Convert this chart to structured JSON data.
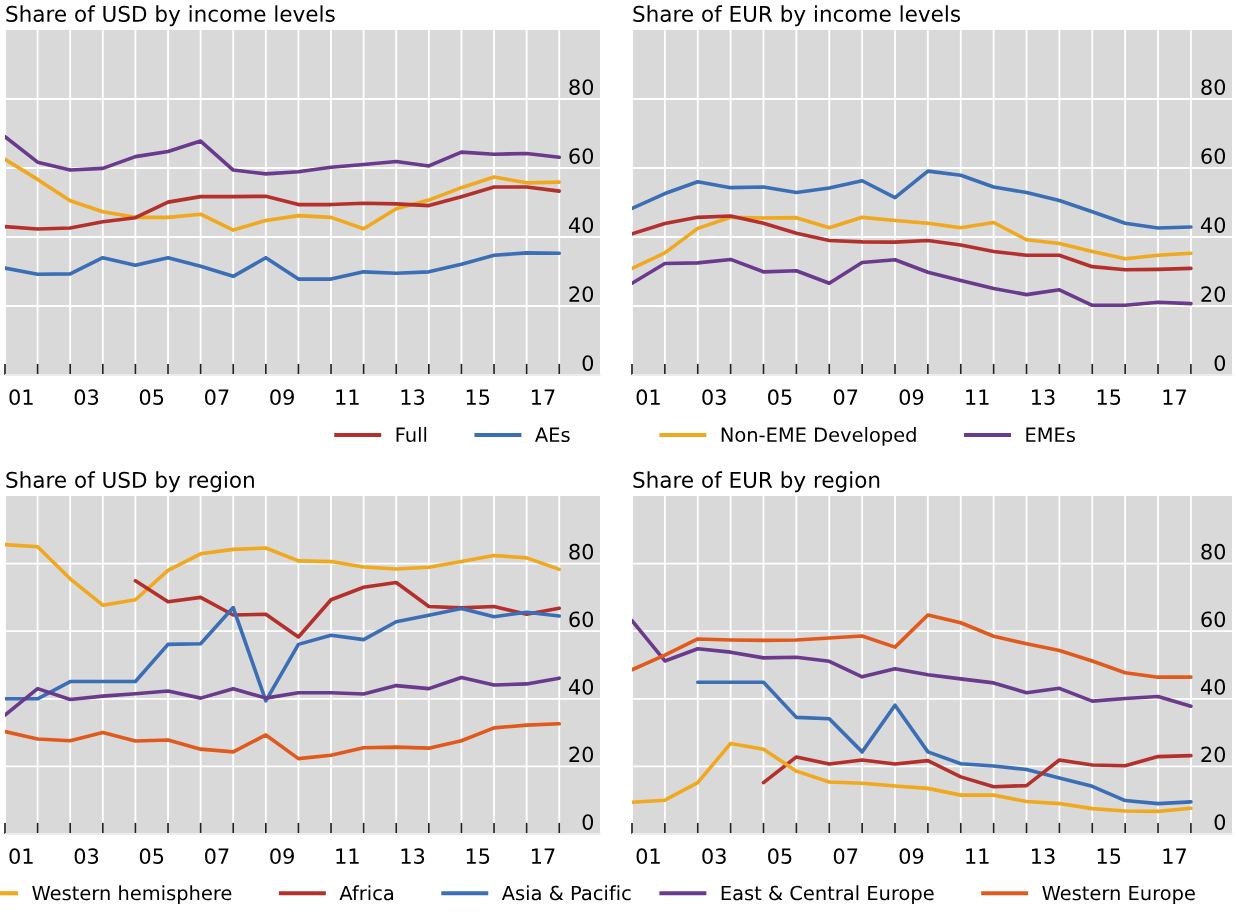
{
  "chart_data": [
    {
      "type": "line",
      "title": "Share of USD by income levels",
      "x": [
        0.5,
        1.5,
        2.5,
        3.5,
        4.5,
        5.5,
        6.5,
        7.5,
        8.5,
        9.5,
        10.5,
        11.5,
        12.5,
        13.5,
        14.5,
        15.5,
        16.5,
        17.5
      ],
      "series": [
        {
          "color": "#6a3a8c",
          "values": [
            69.1,
            61.7,
            59.4,
            59.9,
            63.3,
            64.8,
            67.8,
            59.4,
            58.3,
            58.9,
            60.2,
            61.0,
            61.9,
            60.6,
            64.6,
            64.0,
            64.2,
            63.1
          ]
        },
        {
          "color": "#f0a81e",
          "values": [
            62.5,
            56.7,
            50.5,
            47.3,
            45.7,
            45.7,
            46.6,
            42.0,
            44.8,
            46.2,
            45.7,
            42.4,
            48.2,
            50.7,
            54.3,
            57.4,
            55.7,
            55.9
          ]
        },
        {
          "name": "Full",
          "color": "#b3302d",
          "values": [
            43.0,
            42.3,
            42.6,
            44.4,
            45.6,
            50.1,
            51.7,
            51.7,
            51.8,
            49.4,
            49.4,
            49.8,
            49.6,
            49.1,
            51.7,
            54.5,
            54.5,
            53.3
          ]
        },
        {
          "name": "AEs",
          "color": "#3b6eb5",
          "values": [
            31.0,
            29.2,
            29.3,
            34.0,
            31.8,
            34.0,
            31.5,
            28.6,
            34.0,
            27.8,
            27.8,
            29.9,
            29.5,
            29.9,
            32.1,
            34.7,
            35.4,
            35.3
          ]
        }
      ],
      "xlim": [
        0.5,
        18.75
      ],
      "xticks": [
        {
          "value": 1,
          "label": "01"
        },
        {
          "value": 3,
          "label": "03"
        },
        {
          "value": 5,
          "label": "05"
        },
        {
          "value": 7,
          "label": "07"
        },
        {
          "value": 9,
          "label": "09"
        },
        11,
        13,
        15,
        17,
        {
          "value": 0.5,
          "label": null
        },
        {
          "value": 1.5,
          "label": null
        },
        {
          "value": 2.5,
          "label": null
        },
        {
          "value": 3.5,
          "label": null
        },
        {
          "value": 4.5,
          "label": null
        },
        {
          "value": 5.5,
          "label": null
        },
        {
          "value": 6.5,
          "label": null
        },
        {
          "value": 7.5,
          "label": null
        },
        {
          "value": 8.5,
          "label": null
        },
        {
          "value": 9.5,
          "label": null
        },
        {
          "value": 10.5,
          "label": null
        },
        {
          "value": 11.5,
          "label": null
        },
        {
          "value": 12.5,
          "label": null
        },
        {
          "value": 13.5,
          "label": null
        },
        {
          "value": 14.5,
          "label": null
        },
        {
          "value": 15.5,
          "label": null
        },
        {
          "value": 16.5,
          "label": null
        },
        {
          "value": 17.5,
          "label": null
        }
      ],
      "ylim": [
        0,
        100
      ],
      "yticks": [
        0,
        20,
        40,
        60,
        80
      ],
      "grid": true,
      "legend": "bottom right"
    },
    {
      "type": "line",
      "title": "Share of EUR by income levels",
      "x": [
        0.5,
        1.5,
        2.5,
        3.5,
        4.5,
        5.5,
        6.5,
        7.5,
        8.5,
        9.5,
        10.5,
        11.5,
        12.5,
        13.5,
        14.5,
        15.5,
        16.5,
        17.5
      ],
      "series": [
        {
          "color": "#3b6eb5",
          "values": [
            48.3,
            52.6,
            56.0,
            54.3,
            54.5,
            52.9,
            54.2,
            56.3,
            51.4,
            59.1,
            57.9,
            54.5,
            52.9,
            50.6,
            47.3,
            44.0,
            42.6,
            42.9
          ]
        },
        {
          "name": "Non-EME Developed",
          "color": "#f0a81e",
          "values": [
            30.9,
            35.4,
            42.5,
            45.7,
            45.5,
            45.6,
            42.7,
            45.7,
            44.8,
            44.0,
            42.7,
            44.2,
            39.2,
            38.1,
            35.8,
            33.7,
            34.7,
            35.3
          ]
        },
        {
          "color": "#b3302d",
          "values": [
            40.9,
            43.9,
            45.7,
            46.1,
            44.0,
            41.1,
            39.0,
            38.6,
            38.5,
            39.0,
            37.7,
            35.8,
            34.7,
            34.7,
            31.4,
            30.5,
            30.6,
            30.9
          ]
        },
        {
          "name": "EMEs",
          "color": "#6a3a8c",
          "values": [
            26.6,
            32.3,
            32.5,
            33.5,
            29.9,
            30.2,
            26.6,
            32.6,
            33.4,
            29.8,
            27.4,
            25.1,
            23.3,
            24.7,
            20.2,
            20.2,
            21.1,
            20.7
          ]
        }
      ],
      "xlim": [
        0.5,
        18.75
      ],
      "xticks": [
        {
          "value": 1,
          "label": "01"
        },
        {
          "value": 3,
          "label": "03"
        },
        {
          "value": 5,
          "label": "05"
        },
        {
          "value": 7,
          "label": "07"
        },
        {
          "value": 9,
          "label": "09"
        },
        11,
        13,
        15,
        17,
        {
          "value": 0.5,
          "label": null
        },
        {
          "value": 1.5,
          "label": null
        },
        {
          "value": 2.5,
          "label": null
        },
        {
          "value": 3.5,
          "label": null
        },
        {
          "value": 4.5,
          "label": null
        },
        {
          "value": 5.5,
          "label": null
        },
        {
          "value": 6.5,
          "label": null
        },
        {
          "value": 7.5,
          "label": null
        },
        {
          "value": 8.5,
          "label": null
        },
        {
          "value": 9.5,
          "label": null
        },
        {
          "value": 10.5,
          "label": null
        },
        {
          "value": 11.5,
          "label": null
        },
        {
          "value": 12.5,
          "label": null
        },
        {
          "value": 13.5,
          "label": null
        },
        {
          "value": 14.5,
          "label": null
        },
        {
          "value": 15.5,
          "label": null
        },
        {
          "value": 16.5,
          "label": null
        },
        {
          "value": 17.5,
          "label": null
        }
      ],
      "ylim": [
        0,
        100
      ],
      "yticks": [
        0,
        20,
        40,
        60,
        80
      ],
      "grid": true,
      "legend": "bottom left"
    },
    {
      "type": "line",
      "title": "Share of USD by region",
      "x": [
        0.5,
        1.5,
        2.5,
        3.5,
        4.5,
        5.5,
        6.5,
        7.5,
        8.5,
        9.5,
        10.5,
        11.5,
        12.5,
        13.5,
        14.5,
        15.5,
        16.5,
        17.5
      ],
      "series": [
        {
          "name": "Western hemisphere",
          "color": "#f0a81e",
          "values": [
            85.6,
            85.0,
            75.5,
            67.7,
            69.3,
            78.0,
            82.9,
            84.2,
            84.6,
            80.8,
            80.6,
            79.0,
            78.4,
            78.9,
            80.6,
            82.4,
            81.7,
            78.3
          ]
        },
        {
          "name": "Africa",
          "color": "#b3302d",
          "values": [
            null,
            null,
            null,
            null,
            74.9,
            68.7,
            70.0,
            64.8,
            65.0,
            58.3,
            69.3,
            73.0,
            74.4,
            67.3,
            66.9,
            67.3,
            65.0,
            66.8
          ]
        },
        {
          "name": "Asia & Pacific",
          "color": "#3b6eb5",
          "values": [
            40.0,
            40.0,
            45.1,
            45.1,
            45.1,
            56.1,
            56.3,
            67.0,
            39.4,
            56.1,
            58.8,
            57.5,
            62.8,
            64.7,
            66.7,
            64.3,
            65.6,
            64.5
          ]
        },
        {
          "color": "#6a3a8c",
          "values": [
            35.2,
            43.0,
            39.8,
            40.8,
            41.5,
            42.3,
            40.2,
            43.0,
            40.2,
            41.8,
            41.8,
            41.4,
            43.9,
            43.0,
            46.3,
            44.1,
            44.4,
            46.1
          ]
        },
        {
          "color": "#e05a1e",
          "values": [
            30.3,
            28.1,
            27.6,
            30.0,
            27.5,
            27.8,
            25.1,
            24.3,
            29.3,
            22.3,
            23.3,
            25.5,
            25.7,
            25.4,
            27.6,
            31.4,
            32.2,
            32.6
          ]
        }
      ],
      "xlim": [
        0.5,
        18.75
      ],
      "xticks": [
        {
          "value": 1,
          "label": "01"
        },
        {
          "value": 3,
          "label": "03"
        },
        {
          "value": 5,
          "label": "05"
        },
        {
          "value": 7,
          "label": "07"
        },
        {
          "value": 9,
          "label": "09"
        },
        11,
        13,
        15,
        17,
        {
          "value": 0.5,
          "label": null
        },
        {
          "value": 1.5,
          "label": null
        },
        {
          "value": 2.5,
          "label": null
        },
        {
          "value": 3.5,
          "label": null
        },
        {
          "value": 4.5,
          "label": null
        },
        {
          "value": 5.5,
          "label": null
        },
        {
          "value": 6.5,
          "label": null
        },
        {
          "value": 7.5,
          "label": null
        },
        {
          "value": 8.5,
          "label": null
        },
        {
          "value": 9.5,
          "label": null
        },
        {
          "value": 10.5,
          "label": null
        },
        {
          "value": 11.5,
          "label": null
        },
        {
          "value": 12.5,
          "label": null
        },
        {
          "value": 13.5,
          "label": null
        },
        {
          "value": 14.5,
          "label": null
        },
        {
          "value": 15.5,
          "label": null
        },
        {
          "value": 16.5,
          "label": null
        },
        {
          "value": 17.5,
          "label": null
        }
      ],
      "ylim": [
        0,
        100
      ],
      "yticks": [
        0,
        20,
        40,
        60,
        80
      ],
      "grid": true,
      "legend": "bottom"
    },
    {
      "type": "line",
      "title": "Share of EUR by region",
      "x": [
        0.5,
        1.5,
        2.5,
        3.5,
        4.5,
        5.5,
        6.5,
        7.5,
        8.5,
        9.5,
        10.5,
        11.5,
        12.5,
        13.5,
        14.5,
        15.5,
        16.5,
        17.5
      ],
      "series": [
        {
          "name": "East & Central Europe",
          "color": "#6a3a8c",
          "values": [
            63.1,
            51.2,
            54.8,
            53.8,
            52.1,
            52.3,
            51.1,
            46.5,
            48.9,
            47.1,
            45.9,
            44.7,
            41.8,
            43.1,
            39.3,
            40.1,
            40.7,
            37.8
          ]
        },
        {
          "name": "Western Europe",
          "color": "#e05a1e",
          "values": [
            48.6,
            52.9,
            57.7,
            57.4,
            57.3,
            57.4,
            58.0,
            58.6,
            55.3,
            64.8,
            62.5,
            58.5,
            56.3,
            54.3,
            51.2,
            47.7,
            46.4,
            46.4
          ]
        },
        {
          "color": "#3b6eb5",
          "values": [
            null,
            null,
            44.9,
            44.9,
            44.9,
            34.5,
            34.1,
            24.3,
            38.1,
            24.3,
            20.8,
            20.1,
            19.1,
            16.6,
            14.1,
            9.9,
            9.0,
            9.5
          ]
        },
        {
          "color": "#b3302d",
          "values": [
            null,
            null,
            null,
            null,
            15.2,
            22.8,
            20.7,
            21.9,
            20.7,
            21.7,
            16.9,
            14.0,
            14.3,
            21.9,
            20.4,
            20.2,
            22.9,
            23.2
          ]
        },
        {
          "color": "#f0a81e",
          "values": [
            9.4,
            10.0,
            15.2,
            26.8,
            25.1,
            18.6,
            15.4,
            15.0,
            14.2,
            13.5,
            11.5,
            11.5,
            9.6,
            9.0,
            7.5,
            6.8,
            6.7,
            7.6
          ]
        }
      ],
      "xlim": [
        0.5,
        18.75
      ],
      "xticks": [
        {
          "value": 1,
          "label": "01"
        },
        {
          "value": 3,
          "label": "03"
        },
        {
          "value": 5,
          "label": "05"
        },
        {
          "value": 7,
          "label": "07"
        },
        {
          "value": 9,
          "label": "09"
        },
        11,
        13,
        15,
        17,
        {
          "value": 0.5,
          "label": null
        },
        {
          "value": 1.5,
          "label": null
        },
        {
          "value": 2.5,
          "label": null
        },
        {
          "value": 3.5,
          "label": null
        },
        {
          "value": 4.5,
          "label": null
        },
        {
          "value": 5.5,
          "label": null
        },
        {
          "value": 6.5,
          "label": null
        },
        {
          "value": 7.5,
          "label": null
        },
        {
          "value": 8.5,
          "label": null
        },
        {
          "value": 9.5,
          "label": null
        },
        {
          "value": 10.5,
          "label": null
        },
        {
          "value": 11.5,
          "label": null
        },
        {
          "value": 12.5,
          "label": null
        },
        {
          "value": 13.5,
          "label": null
        },
        {
          "value": 14.5,
          "label": null
        },
        {
          "value": 15.5,
          "label": null
        },
        {
          "value": 16.5,
          "label": null
        },
        {
          "value": 17.5,
          "label": null
        }
      ],
      "ylim": [
        0,
        100
      ],
      "yticks": [
        0,
        20,
        40,
        60,
        80
      ],
      "grid": true,
      "legend": "bottom left"
    }
  ]
}
